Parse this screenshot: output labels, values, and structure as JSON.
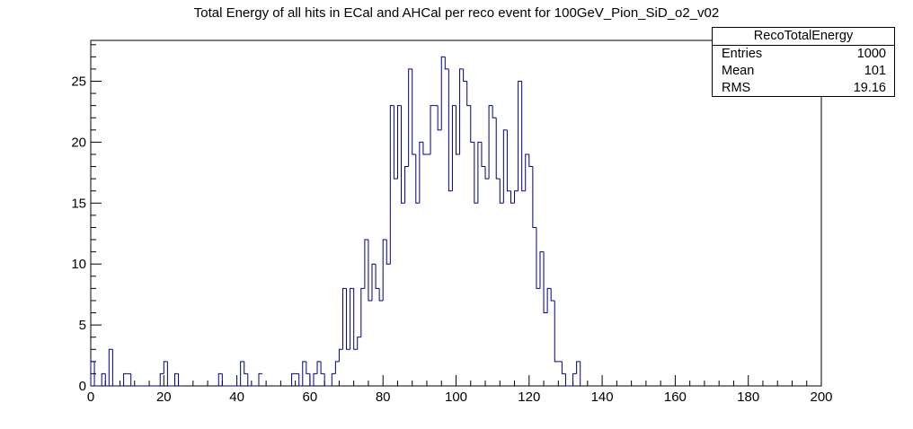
{
  "chart_data": {
    "type": "histogram",
    "title": "Total Energy of all hits in ECal and AHCal per reco event for 100GeV_Pion_SiD_o2_v02",
    "xlabel": "",
    "ylabel": "",
    "xlim": [
      0,
      200
    ],
    "ylim": [
      0,
      28.35
    ],
    "bin_width": 1,
    "x_ticks": [
      0,
      20,
      40,
      60,
      80,
      100,
      120,
      140,
      160,
      180,
      200
    ],
    "y_ticks": [
      0,
      5,
      10,
      15,
      20,
      25
    ],
    "bins": {
      "0": 2,
      "1": 0,
      "2": 0,
      "3": 1,
      "4": 0,
      "5": 3,
      "6": 0,
      "7": 0,
      "8": 0,
      "9": 1,
      "10": 1,
      "11": 0,
      "12": 0,
      "13": 0,
      "14": 0,
      "15": 0,
      "16": 0,
      "17": 0,
      "18": 0,
      "19": 1,
      "20": 2,
      "21": 0,
      "22": 0,
      "23": 1,
      "24": 0,
      "35": 1,
      "36": 0,
      "37": 0,
      "38": 0,
      "39": 0,
      "40": 0,
      "41": 2,
      "42": 1,
      "43": 0,
      "44": 0,
      "45": 0,
      "46": 1,
      "55": 1,
      "56": 1,
      "57": 0,
      "58": 2,
      "59": 1,
      "60": 0,
      "61": 1,
      "62": 2,
      "63": 1,
      "64": 0,
      "65": 0,
      "66": 1,
      "67": 2,
      "68": 3,
      "69": 8,
      "70": 3,
      "71": 8,
      "72": 3,
      "73": 4,
      "74": 8,
      "75": 12,
      "76": 7,
      "77": 10,
      "78": 8,
      "79": 7,
      "80": 12,
      "81": 10,
      "82": 23,
      "83": 17,
      "84": 23,
      "85": 15,
      "86": 18,
      "87": 26,
      "88": 19,
      "89": 15,
      "90": 20,
      "91": 19,
      "92": 19,
      "93": 23,
      "94": 23,
      "95": 21,
      "96": 27,
      "97": 26,
      "98": 16,
      "99": 23,
      "100": 19,
      "101": 26,
      "102": 25,
      "103": 23,
      "104": 20,
      "105": 15,
      "106": 20,
      "107": 18,
      "108": 17,
      "109": 23,
      "110": 22,
      "111": 17,
      "112": 15,
      "113": 21,
      "114": 16,
      "115": 15,
      "116": 16,
      "117": 25,
      "118": 16,
      "119": 19,
      "120": 18,
      "121": 13,
      "122": 8,
      "123": 11,
      "124": 6,
      "125": 8,
      "126": 7,
      "127": 2,
      "128": 2,
      "129": 1,
      "130": 0,
      "131": 0,
      "132": 1,
      "133": 2
    },
    "stats": {
      "name": "RecoTotalEnergy",
      "rows": [
        {
          "label": "Entries",
          "value": "1000"
        },
        {
          "label": "Mean",
          "value": "101"
        },
        {
          "label": "RMS",
          "value": "19.16"
        }
      ]
    },
    "line_color": "#000080",
    "grid": false
  }
}
